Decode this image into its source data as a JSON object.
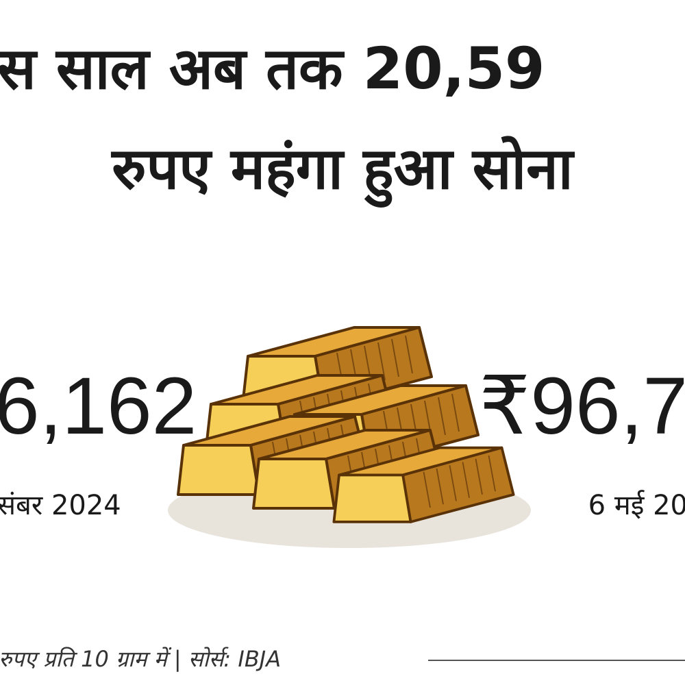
{
  "headline": {
    "line1": "स साल अब तक 20,59",
    "line2": "रुपए महंगा हुआ सोना"
  },
  "left": {
    "price": "6,162",
    "date": "संबर 2024"
  },
  "right": {
    "price": "₹96,7",
    "date": "6 मई 20"
  },
  "footer": "रुपए प्रति 10 ग्राम में | सोर्स: IBJA"
}
